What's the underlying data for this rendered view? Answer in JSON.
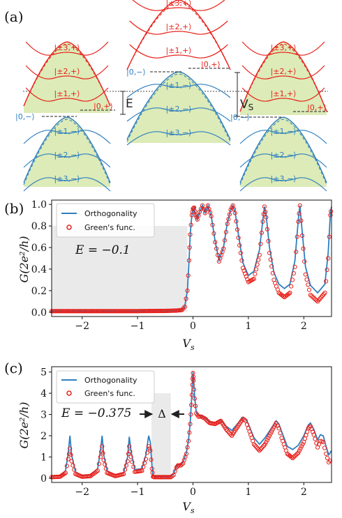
{
  "panel_a": {
    "panel_label": "(a)",
    "colors": {
      "plus": "#e8201a",
      "minus": "#2e7fc0",
      "fill": "#dcebb7",
      "ink": "#222222"
    },
    "left_cone": {
      "plus_labels": [
        "|±3,+⟩",
        "|±2,+⟩",
        "|±1,+⟩"
      ],
      "minus_labels": [
        "|±1,−⟩",
        "|±2,−⟩",
        "|±3,−⟩"
      ],
      "zero_plus": "|0,+⟩",
      "zero_minus": "|0,−⟩",
      "gap_label": "E"
    },
    "middle_cone": {
      "plus_labels": [
        "|±3,+⟩",
        "|±2,+⟩",
        "|±1,+⟩"
      ],
      "minus_labels": [
        "|±1,−⟩",
        "|±2,−⟩",
        "|±3,−⟩"
      ],
      "zero_plus": "|0,+⟩",
      "zero_minus": "|0,−⟩"
    },
    "right_cone": {
      "plus_labels": [
        "|±3,+⟩",
        "|±2,+⟩",
        "|±1,+⟩"
      ],
      "minus_labels": [
        "|±1,−⟩",
        "|±2,−⟩",
        "|±3,−⟩"
      ],
      "zero_plus": "|0,+⟩",
      "zero_minus": "|0,−⟩",
      "vs_label": "V_S"
    }
  },
  "chart_data": [
    {
      "panel_label": "(b)",
      "type": "line",
      "xlabel": "V_s",
      "ylabel": "G(2e²/h)",
      "xlim": [
        -2.55,
        2.5
      ],
      "ylim": [
        -0.04,
        1.04
      ],
      "xticks": [
        -2,
        -1,
        0,
        1,
        2
      ],
      "yticks": [
        0.0,
        0.2,
        0.4,
        0.6,
        0.8,
        1.0
      ],
      "xtick_labels": [
        "−2",
        "−1",
        "0",
        "1",
        "2"
      ],
      "ytick_labels": [
        "0.0",
        "0.2",
        "0.4",
        "0.6",
        "0.8",
        "1.0"
      ],
      "annotation": "E = −0.1",
      "shaded_region": {
        "x": [
          -2.55,
          -0.1
        ],
        "y": [
          0,
          0.8
        ]
      },
      "legend": {
        "position": "top-left",
        "entries": [
          "Orthogonality",
          "Green's func."
        ]
      },
      "series": [
        {
          "name": "Orthogonality",
          "style": "line",
          "color": "#2e7fc0",
          "x": [
            -2.55,
            -1.0,
            -0.5,
            -0.3,
            -0.2,
            -0.15,
            -0.1,
            -0.07,
            -0.05,
            -0.02,
            0.0,
            0.02,
            0.05,
            0.08,
            0.12,
            0.17,
            0.22,
            0.27,
            0.33,
            0.4,
            0.47,
            0.55,
            0.62,
            0.68,
            0.72,
            0.76,
            0.82,
            0.9,
            1.0,
            1.1,
            1.2,
            1.26,
            1.29,
            1.32,
            1.38,
            1.46,
            1.55,
            1.65,
            1.75,
            1.84,
            1.9,
            1.93,
            1.97,
            2.03,
            2.12,
            2.25,
            2.38,
            2.44,
            2.48,
            2.5
          ],
          "y": [
            0.01,
            0.01,
            0.012,
            0.015,
            0.02,
            0.05,
            0.2,
            0.48,
            0.72,
            0.9,
            0.96,
            0.97,
            0.9,
            0.86,
            0.93,
            0.99,
            0.92,
            0.99,
            0.89,
            0.66,
            0.48,
            0.6,
            0.83,
            0.95,
            0.99,
            0.93,
            0.72,
            0.46,
            0.34,
            0.38,
            0.58,
            0.85,
            0.98,
            0.9,
            0.6,
            0.37,
            0.26,
            0.22,
            0.26,
            0.48,
            0.86,
            0.99,
            0.75,
            0.42,
            0.25,
            0.18,
            0.26,
            0.55,
            0.92,
            0.98
          ]
        },
        {
          "name": "Green's func.",
          "style": "markers",
          "color": "#e8201a",
          "x": [
            -2.55,
            -1.0,
            -0.5,
            -0.3,
            -0.2,
            -0.15,
            -0.1,
            -0.07,
            -0.05,
            -0.02,
            0.0,
            0.02,
            0.05,
            0.08,
            0.12,
            0.17,
            0.22,
            0.27,
            0.33,
            0.4,
            0.47,
            0.55,
            0.62,
            0.68,
            0.72,
            0.76,
            0.82,
            0.9,
            1.0,
            1.1,
            1.2,
            1.26,
            1.29,
            1.32,
            1.38,
            1.46,
            1.55,
            1.65,
            1.75,
            1.84,
            1.9,
            1.93,
            1.97,
            2.03,
            2.12,
            2.25,
            2.38,
            2.44,
            2.48,
            2.5
          ],
          "y": [
            0.01,
            0.01,
            0.012,
            0.015,
            0.02,
            0.05,
            0.2,
            0.48,
            0.72,
            0.9,
            0.96,
            0.97,
            0.9,
            0.86,
            0.93,
            0.99,
            0.92,
            0.99,
            0.89,
            0.65,
            0.47,
            0.59,
            0.82,
            0.95,
            0.99,
            0.92,
            0.69,
            0.41,
            0.28,
            0.31,
            0.53,
            0.84,
            0.98,
            0.88,
            0.55,
            0.3,
            0.18,
            0.14,
            0.18,
            0.42,
            0.84,
            0.99,
            0.71,
            0.35,
            0.16,
            0.1,
            0.18,
            0.5,
            0.9,
            0.97
          ]
        }
      ]
    },
    {
      "panel_label": "(c)",
      "type": "line",
      "xlabel": "V_s",
      "ylabel": "G(2e²/h)",
      "xlim": [
        -2.55,
        2.5
      ],
      "ylim": [
        -0.2,
        5.25
      ],
      "xticks": [
        -2,
        -1,
        0,
        1,
        2
      ],
      "yticks": [
        0,
        1,
        2,
        3,
        4,
        5
      ],
      "xtick_labels": [
        "−2",
        "−1",
        "0",
        "1",
        "2"
      ],
      "ytick_labels": [
        "0",
        "1",
        "2",
        "3",
        "4",
        "5"
      ],
      "annotation": "E = −0.375",
      "gap_label": "Δ",
      "shaded_region": {
        "x": [
          -0.75,
          -0.4
        ],
        "y": [
          0,
          4.0
        ]
      },
      "legend": {
        "position": "top-left",
        "entries": [
          "Orthogonality",
          "Green's func."
        ]
      },
      "series": [
        {
          "name": "Orthogonality",
          "style": "line",
          "color": "#2e7fc0",
          "x": [
            -2.55,
            -2.4,
            -2.3,
            -2.25,
            -2.22,
            -2.19,
            -2.12,
            -2.0,
            -1.85,
            -1.72,
            -1.67,
            -1.64,
            -1.61,
            -1.55,
            -1.4,
            -1.25,
            -1.18,
            -1.15,
            -1.12,
            -1.05,
            -0.92,
            -0.85,
            -0.8,
            -0.77,
            -0.74,
            -0.72,
            -0.7,
            -0.6,
            -0.5,
            -0.4,
            -0.35,
            -0.3,
            -0.27,
            -0.22,
            -0.18,
            -0.12,
            -0.08,
            -0.05,
            -0.03,
            -0.01,
            0.0,
            0.01,
            0.03,
            0.06,
            0.1,
            0.15,
            0.22,
            0.3,
            0.4,
            0.5,
            0.6,
            0.7,
            0.8,
            0.9,
            0.95,
            1.0,
            1.1,
            1.2,
            1.3,
            1.4,
            1.5,
            1.55,
            1.6,
            1.7,
            1.8,
            1.9,
            2.0,
            2.08,
            2.12,
            2.18,
            2.25,
            2.3,
            2.35,
            2.4,
            2.45,
            2.5
          ],
          "y": [
            0.1,
            0.12,
            0.35,
            1.2,
            2.0,
            1.1,
            0.3,
            0.12,
            0.15,
            0.45,
            1.3,
            2.0,
            1.1,
            0.35,
            0.15,
            0.25,
            1.0,
            1.95,
            1.3,
            0.4,
            0.45,
            1.1,
            2.0,
            1.7,
            0.6,
            0.1,
            0.08,
            0.08,
            0.08,
            0.08,
            0.2,
            0.55,
            0.65,
            0.65,
            0.75,
            1.2,
            1.8,
            2.6,
            3.5,
            4.5,
            5.0,
            4.7,
            3.8,
            3.1,
            2.95,
            2.95,
            2.85,
            2.65,
            2.6,
            2.75,
            2.45,
            2.25,
            2.55,
            2.85,
            2.8,
            2.55,
            1.9,
            1.6,
            1.9,
            2.3,
            2.7,
            2.55,
            2.2,
            1.5,
            1.35,
            1.55,
            2.0,
            2.5,
            2.6,
            2.3,
            1.8,
            2.05,
            2.0,
            1.5,
            1.1,
            1.3
          ]
        },
        {
          "name": "Green's func.",
          "style": "markers",
          "color": "#e8201a",
          "x": [
            -2.55,
            -2.4,
            -2.3,
            -2.25,
            -2.22,
            -2.19,
            -2.12,
            -2.0,
            -1.85,
            -1.72,
            -1.67,
            -1.64,
            -1.61,
            -1.55,
            -1.4,
            -1.25,
            -1.18,
            -1.15,
            -1.12,
            -1.05,
            -0.92,
            -0.85,
            -0.8,
            -0.77,
            -0.74,
            -0.72,
            -0.7,
            -0.6,
            -0.5,
            -0.4,
            -0.35,
            -0.3,
            -0.27,
            -0.22,
            -0.18,
            -0.12,
            -0.08,
            -0.05,
            -0.03,
            -0.01,
            0.0,
            0.01,
            0.03,
            0.06,
            0.1,
            0.15,
            0.22,
            0.3,
            0.4,
            0.5,
            0.6,
            0.7,
            0.8,
            0.9,
            0.95,
            1.0,
            1.1,
            1.2,
            1.3,
            1.4,
            1.5,
            1.55,
            1.6,
            1.7,
            1.8,
            1.9,
            2.0,
            2.08,
            2.12,
            2.18,
            2.25,
            2.3,
            2.35,
            2.4,
            2.45,
            2.5
          ],
          "y": [
            0.05,
            0.07,
            0.25,
            0.9,
            1.4,
            0.8,
            0.2,
            0.07,
            0.1,
            0.35,
            1.0,
            1.5,
            0.85,
            0.25,
            0.1,
            0.2,
            0.8,
            1.5,
            1.0,
            0.3,
            0.35,
            0.9,
            1.5,
            1.3,
            0.45,
            0.07,
            0.05,
            0.05,
            0.05,
            0.05,
            0.15,
            0.5,
            0.6,
            0.6,
            0.7,
            1.15,
            1.75,
            2.55,
            3.45,
            4.4,
            4.95,
            4.6,
            3.75,
            3.05,
            2.9,
            2.9,
            2.8,
            2.6,
            2.55,
            2.7,
            2.3,
            2.0,
            2.4,
            2.8,
            2.7,
            2.35,
            1.6,
            1.3,
            1.6,
            2.1,
            2.6,
            2.35,
            1.9,
            1.15,
            0.95,
            1.2,
            1.7,
            2.35,
            2.45,
            2.05,
            1.45,
            1.75,
            1.7,
            1.15,
            0.75,
            0.9
          ]
        }
      ]
    }
  ]
}
